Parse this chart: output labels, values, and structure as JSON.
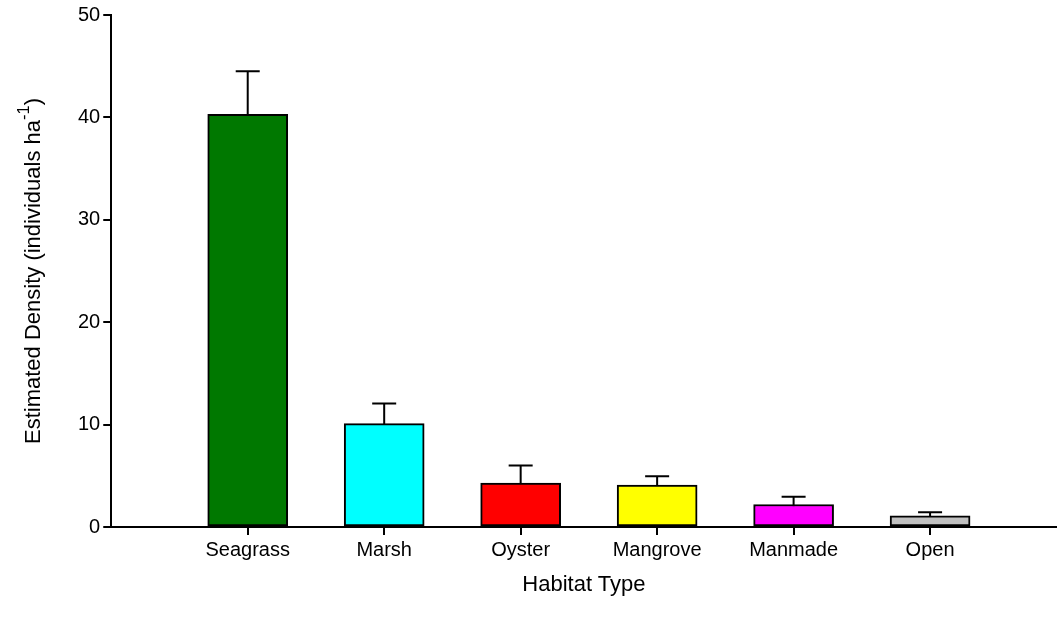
{
  "chart_data": {
    "type": "bar",
    "xlabel": "Habitat Type",
    "ylabel": "Estimated Density (individuals ha$^{-1}$)",
    "categories": [
      "Seagrass",
      "Marsh",
      "Oyster",
      "Mangrove",
      "Manmade",
      "Open"
    ],
    "values": [
      40.3,
      10.1,
      4.3,
      4.1,
      2.2,
      1.1
    ],
    "errors": [
      4.2,
      1.95,
      1.7,
      0.85,
      0.75,
      0.35
    ],
    "colors": [
      "#007800",
      "#00ffff",
      "#ff0000",
      "#ffff00",
      "#ff00ff",
      "#c0c0c0"
    ],
    "ylim": [
      0,
      50
    ],
    "yticks": [
      0,
      10,
      20,
      30,
      40,
      50
    ],
    "grid": false,
    "legend": false
  }
}
